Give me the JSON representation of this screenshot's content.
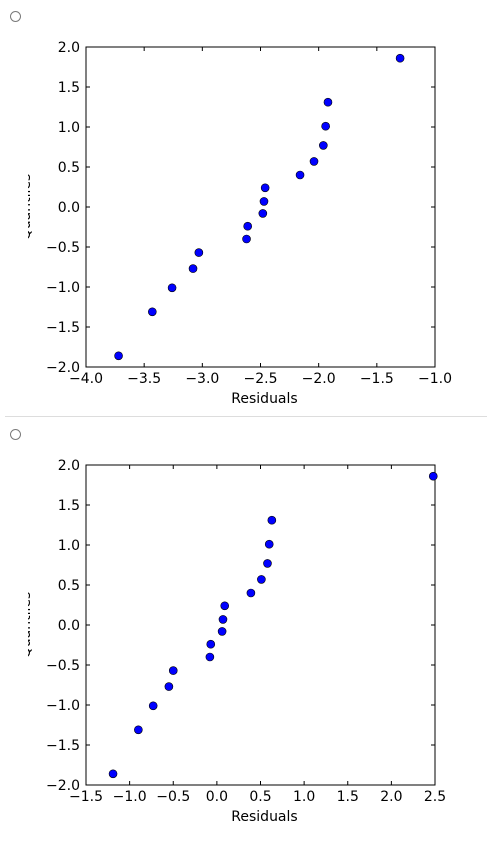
{
  "options": [
    {
      "id": "option-1",
      "selected": false,
      "chart_data": {
        "type": "scatter",
        "xlabel": "Residuals",
        "ylabel": "Quantiles",
        "xlim": [
          -4.0,
          -1.0
        ],
        "ylim": [
          -2.0,
          2.0
        ],
        "xticks": [
          -4.0,
          -3.5,
          -3.0,
          -2.5,
          -2.0,
          -1.5,
          -1.0
        ],
        "xtick_labels": [
          "−4.0",
          "−3.5",
          "−3.0",
          "−2.5",
          "−2.0",
          "−1.5",
          "−1.0"
        ],
        "yticks": [
          2.0,
          1.5,
          1.0,
          0.5,
          0.0,
          -0.5,
          -1.0,
          -1.5,
          -2.0
        ],
        "ytick_labels": [
          "2.0",
          "1.5",
          "1.0",
          "0.5",
          "0.0",
          "−0.5",
          "−1.0",
          "−1.5",
          "−2.0"
        ],
        "grid": false,
        "marker_color": "#0000ff",
        "points": [
          {
            "x": -3.72,
            "y": -1.86
          },
          {
            "x": -3.43,
            "y": -1.31
          },
          {
            "x": -3.26,
            "y": -1.01
          },
          {
            "x": -3.08,
            "y": -0.77
          },
          {
            "x": -3.03,
            "y": -0.57
          },
          {
            "x": -2.62,
            "y": -0.4
          },
          {
            "x": -2.61,
            "y": -0.24
          },
          {
            "x": -2.48,
            "y": -0.08
          },
          {
            "x": -2.47,
            "y": 0.07
          },
          {
            "x": -2.46,
            "y": 0.24
          },
          {
            "x": -2.16,
            "y": 0.4
          },
          {
            "x": -2.04,
            "y": 0.57
          },
          {
            "x": -1.96,
            "y": 0.77
          },
          {
            "x": -1.94,
            "y": 1.01
          },
          {
            "x": -1.92,
            "y": 1.31
          },
          {
            "x": -1.3,
            "y": 1.86
          }
        ]
      }
    },
    {
      "id": "option-2",
      "selected": false,
      "chart_data": {
        "type": "scatter",
        "xlabel": "Residuals",
        "ylabel": "Quantiles",
        "xlim": [
          -1.5,
          2.5
        ],
        "ylim": [
          -2.0,
          2.0
        ],
        "xticks": [
          -1.5,
          -1.0,
          -0.5,
          0.0,
          0.5,
          1.0,
          1.5,
          2.0,
          2.5
        ],
        "xtick_labels": [
          "−1.5",
          "−1.0",
          "−0.5",
          "0.0",
          "0.5",
          "1.0",
          "1.5",
          "2.0",
          "2.5"
        ],
        "yticks": [
          2.0,
          1.5,
          1.0,
          0.5,
          0.0,
          -0.5,
          -1.0,
          -1.5,
          -2.0
        ],
        "ytick_labels": [
          "2.0",
          "1.5",
          "1.0",
          "0.5",
          "0.0",
          "−0.5",
          "−1.0",
          "−1.5",
          "−2.0"
        ],
        "grid": false,
        "marker_color": "#0000ff",
        "points": [
          {
            "x": -1.19,
            "y": -1.86
          },
          {
            "x": -0.9,
            "y": -1.31
          },
          {
            "x": -0.73,
            "y": -1.01
          },
          {
            "x": -0.55,
            "y": -0.77
          },
          {
            "x": -0.5,
            "y": -0.57
          },
          {
            "x": -0.08,
            "y": -0.4
          },
          {
            "x": -0.07,
            "y": -0.24
          },
          {
            "x": 0.06,
            "y": -0.08
          },
          {
            "x": 0.07,
            "y": 0.07
          },
          {
            "x": 0.09,
            "y": 0.24
          },
          {
            "x": 0.39,
            "y": 0.4
          },
          {
            "x": 0.51,
            "y": 0.57
          },
          {
            "x": 0.58,
            "y": 0.77
          },
          {
            "x": 0.6,
            "y": 1.01
          },
          {
            "x": 0.63,
            "y": 1.31
          },
          {
            "x": 2.48,
            "y": 1.86
          }
        ]
      }
    }
  ]
}
